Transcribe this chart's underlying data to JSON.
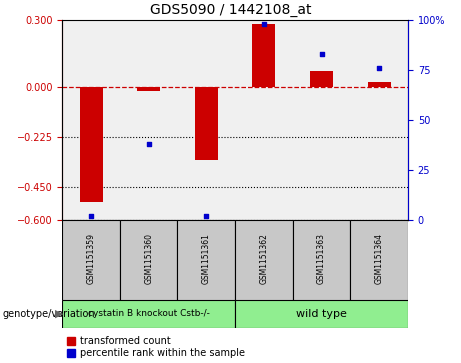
{
  "title": "GDS5090 / 1442108_at",
  "samples": [
    "GSM1151359",
    "GSM1151360",
    "GSM1151361",
    "GSM1151362",
    "GSM1151363",
    "GSM1151364"
  ],
  "red_values": [
    -0.52,
    -0.02,
    -0.33,
    0.28,
    0.07,
    0.02
  ],
  "blue_values": [
    2,
    38,
    2,
    98,
    83,
    76
  ],
  "ylim_left": [
    -0.6,
    0.3
  ],
  "ylim_right": [
    0,
    100
  ],
  "yticks_left": [
    0.3,
    0,
    -0.225,
    -0.45,
    -0.6
  ],
  "yticks_right": [
    100,
    75,
    50,
    25,
    0
  ],
  "hlines_dotted": [
    -0.225,
    -0.45,
    -0.6
  ],
  "groups": [
    {
      "label": "cystatin B knockout Cstb-/-",
      "indices": [
        0,
        1,
        2
      ],
      "color": "#90EE90"
    },
    {
      "label": "wild type",
      "indices": [
        3,
        4,
        5
      ],
      "color": "#90EE90"
    }
  ],
  "genotype_label": "genotype/variation",
  "legend_red": "transformed count",
  "legend_blue": "percentile rank within the sample",
  "red_color": "#CC0000",
  "blue_color": "#0000CC",
  "bar_width": 0.4,
  "dashed_line_color": "#CC0000",
  "plot_bg": "#f0f0f0",
  "label_box_color": "#c8c8c8",
  "title_fontsize": 10,
  "tick_fontsize": 7,
  "sample_fontsize": 5.5,
  "group_fontsize_small": 6.5,
  "group_fontsize_large": 8,
  "legend_fontsize": 7
}
